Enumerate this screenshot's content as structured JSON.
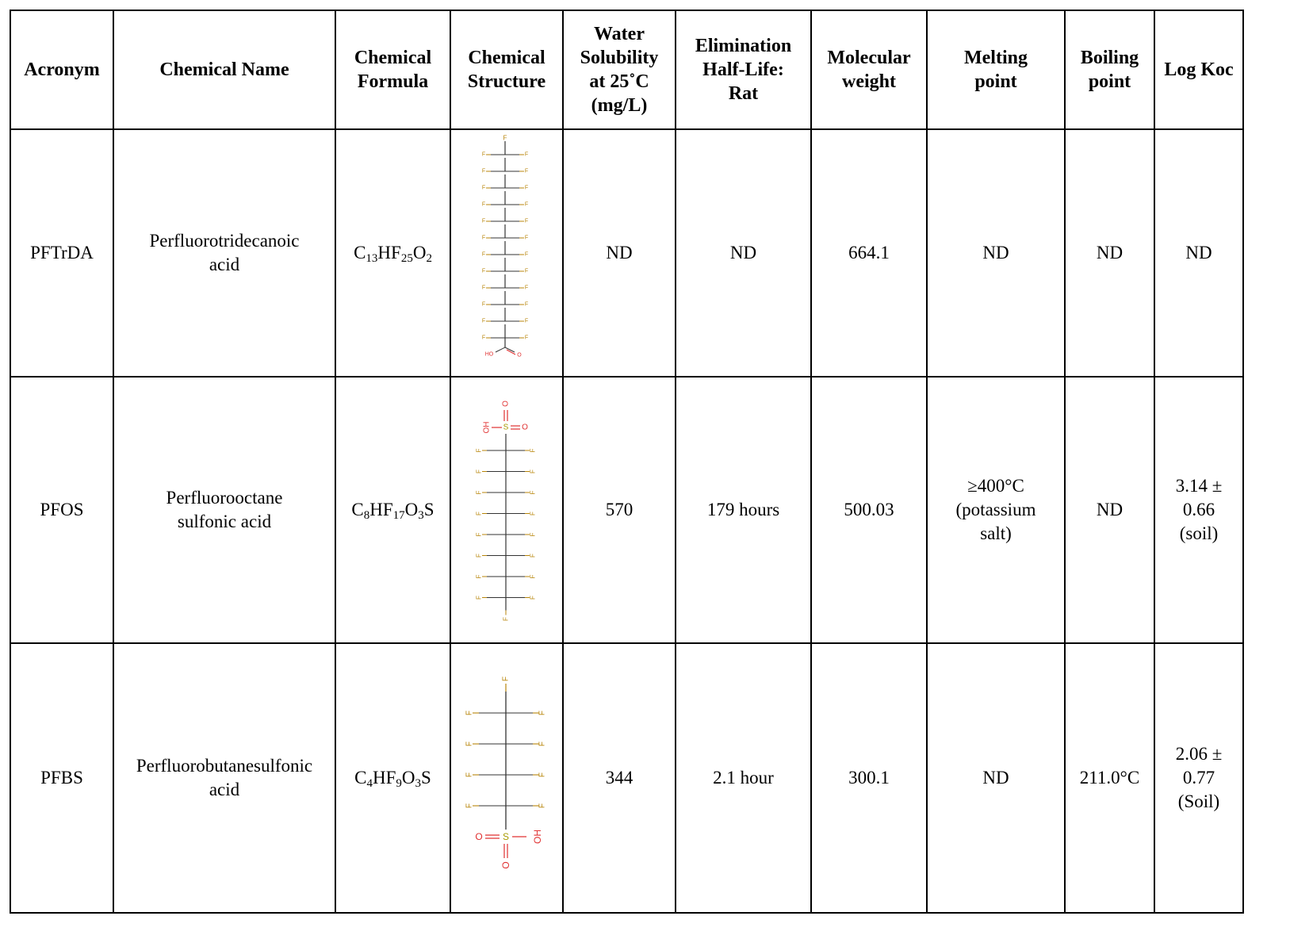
{
  "headers": {
    "acronym": "Acronym",
    "chemical_name": "Chemical Name",
    "formula_l1": "Chemical",
    "formula_l2": "Formula",
    "structure_l1": "Chemical",
    "structure_l2": "Structure",
    "solubility_l1": "Water",
    "solubility_l2": "Solubility",
    "solubility_l3": "at 25˚C",
    "solubility_l4": "(mg/L)",
    "halflife_l1": "Elimination",
    "halflife_l2": "Half-Life:",
    "halflife_l3": "Rat",
    "mw_l1": "Molecular",
    "mw_l2": "weight",
    "mp_l1": "Melting",
    "mp_l2": "point",
    "bp_l1": "Boiling",
    "bp_l2": "point",
    "logkoc": "Log Koc"
  },
  "rows": [
    {
      "acronym": "PFTrDA",
      "name_l1": "Perfluorotridecanoic",
      "name_l2": "acid",
      "formula": {
        "p1": "C",
        "s1": "13",
        "p2": "HF",
        "s2": "25",
        "p3": "O",
        "s3": "2",
        "p4": ""
      },
      "structure_labels": {
        "f": "F",
        "hydroxyl": "HO",
        "oxygen": "O"
      },
      "solubility": "ND",
      "halflife": "ND",
      "mw": "664.1",
      "mp_l1": "ND",
      "mp_l2": "",
      "mp_l3": "",
      "bp": "ND",
      "koc_l1": "ND",
      "koc_l2": "",
      "koc_l3": ""
    },
    {
      "acronym": "PFOS",
      "name_l1": "Perfluorooctane",
      "name_l2": "sulfonic acid",
      "formula": {
        "p1": "C",
        "s1": "8",
        "p2": "HF",
        "s2": "17",
        "p3": "O",
        "s3": "3",
        "p4": "S"
      },
      "structure_labels": {
        "f": "F",
        "hydroxyl": "OH",
        "oxygen": "O",
        "sulfur": "S"
      },
      "solubility": "570",
      "halflife": "179 hours",
      "mw": "500.03",
      "mp_l1": "≥400°C",
      "mp_l2": "(potassium",
      "mp_l3": "salt)",
      "bp": "ND",
      "koc_l1": "3.14 ±",
      "koc_l2": "0.66",
      "koc_l3": "(soil)"
    },
    {
      "acronym": "PFBS",
      "name_l1": "Perfluorobutanesulfonic",
      "name_l2": "acid",
      "formula": {
        "p1": "C",
        "s1": "4",
        "p2": "HF",
        "s2": "9",
        "p3": "O",
        "s3": "3",
        "p4": "S"
      },
      "structure_labels": {
        "f": "F",
        "hydroxyl": "OH",
        "oxygen": "O",
        "sulfur": "S"
      },
      "solubility": "344",
      "halflife": "2.1 hour",
      "mw": "300.1",
      "mp_l1": "ND",
      "mp_l2": "",
      "mp_l3": "",
      "bp": "211.0°C",
      "koc_l1": "2.06 ±",
      "koc_l2": "0.77",
      "koc_l3": "(Soil)"
    }
  ]
}
